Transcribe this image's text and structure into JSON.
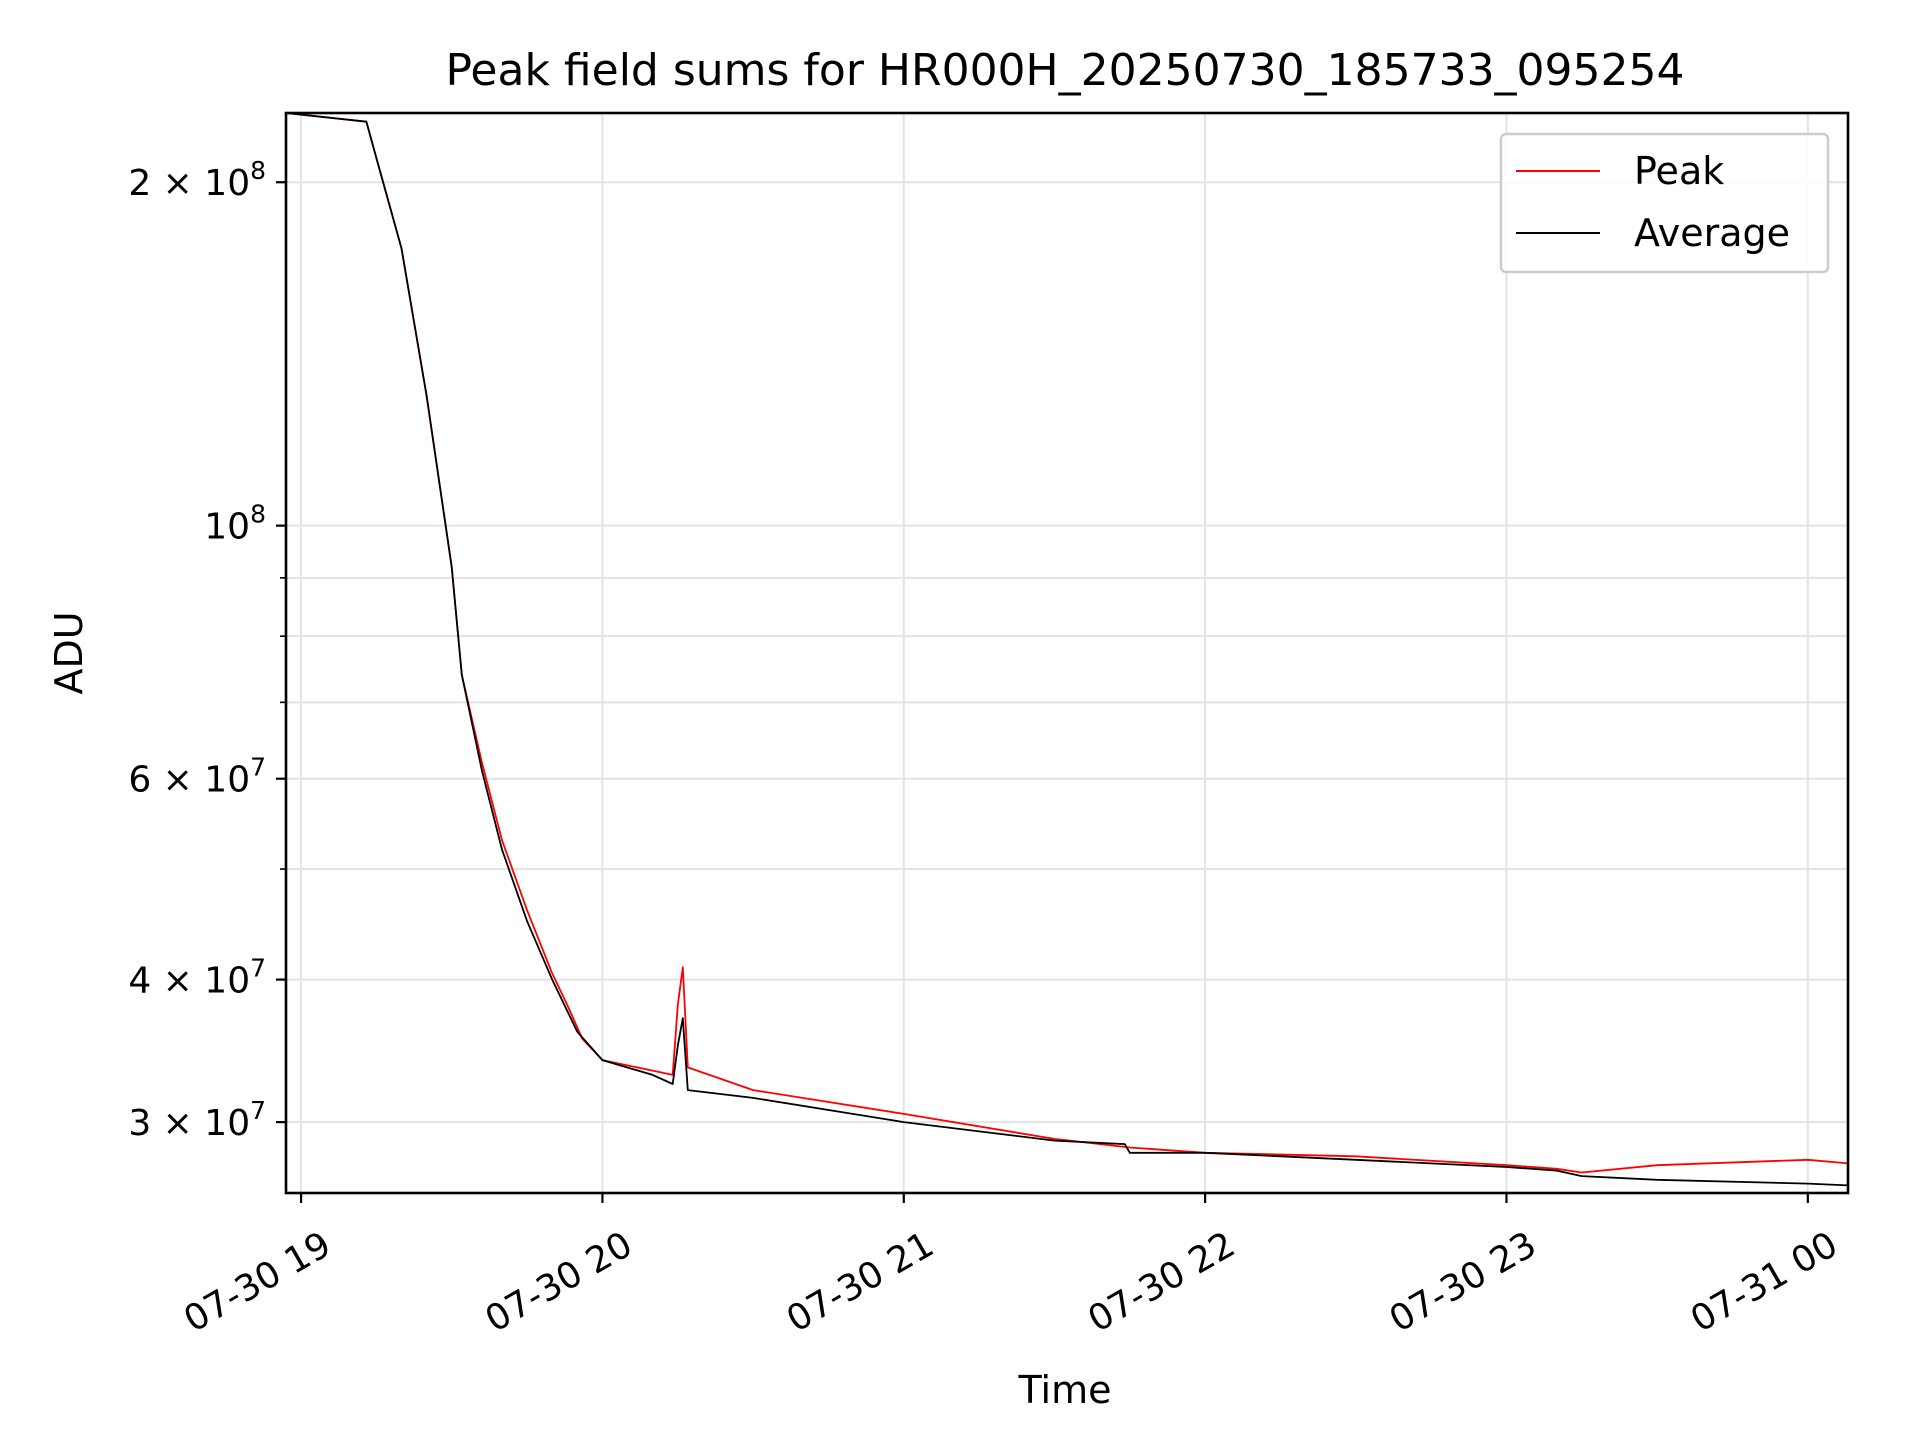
{
  "chart_data": {
    "type": "line",
    "title": "Peak field sums for HR000H_20250730_185733_095254",
    "xlabel": "Time",
    "ylabel": "ADU",
    "yscale": "log",
    "xlim": [
      "2025-07-30 18:57",
      "2025-07-31 00:08"
    ],
    "ylim": [
      26000000,
      230000000
    ],
    "grid": true,
    "legend_position": "upper right",
    "x_ticks": [
      {
        "value": "2025-07-30 19:00",
        "label": "07-30 19"
      },
      {
        "value": "2025-07-30 20:00",
        "label": "07-30 20"
      },
      {
        "value": "2025-07-30 21:00",
        "label": "07-30 21"
      },
      {
        "value": "2025-07-30 22:00",
        "label": "07-30 22"
      },
      {
        "value": "2025-07-30 23:00",
        "label": "07-30 23"
      },
      {
        "value": "2025-07-31 00:00",
        "label": "07-31 00"
      }
    ],
    "y_ticks": [
      {
        "value": 200000000,
        "mantissa": "2",
        "base": "10",
        "exponent": "8"
      },
      {
        "value": 100000000,
        "mantissa": "",
        "base": "10",
        "exponent": "8"
      },
      {
        "value": 60000000,
        "mantissa": "6",
        "base": "10",
        "exponent": "7"
      },
      {
        "value": 40000000,
        "mantissa": "4",
        "base": "10",
        "exponent": "7"
      },
      {
        "value": 30000000,
        "mantissa": "3",
        "base": "10",
        "exponent": "7"
      }
    ],
    "y_minor_ticks": [
      90000000,
      80000000,
      70000000,
      50000000
    ],
    "series": [
      {
        "name": "Peak",
        "color": "#ff0000",
        "x": [
          "2025-07-30 18:57",
          "2025-07-30 19:13",
          "2025-07-30 19:15",
          "2025-07-30 19:20",
          "2025-07-30 19:25",
          "2025-07-30 19:30",
          "2025-07-30 19:32",
          "2025-07-30 19:36",
          "2025-07-30 19:40",
          "2025-07-30 19:45",
          "2025-07-30 19:50",
          "2025-07-30 19:53",
          "2025-07-30 19:56",
          "2025-07-30 20:00",
          "2025-07-30 20:14",
          "2025-07-30 20:15",
          "2025-07-30 20:16",
          "2025-07-30 20:17",
          "2025-07-30 20:30",
          "2025-07-30 21:00",
          "2025-07-30 21:30",
          "2025-07-30 21:45",
          "2025-07-30 22:00",
          "2025-07-30 22:30",
          "2025-07-30 23:00",
          "2025-07-30 23:10",
          "2025-07-30 23:15",
          "2025-07-30 23:30",
          "2025-07-31 00:00",
          "2025-07-31 00:08"
        ],
        "y": [
          230000000,
          226000000,
          210000000,
          175000000,
          130000000,
          92000000,
          74000000,
          62000000,
          53000000,
          46000000,
          40500000,
          38000000,
          35500000,
          34000000,
          33000000,
          38000000,
          41000000,
          33500000,
          32000000,
          30500000,
          29000000,
          28500000,
          28200000,
          28000000,
          27500000,
          27300000,
          27100000,
          27500000,
          27800000,
          27600000
        ]
      },
      {
        "name": "Average",
        "color": "#000000",
        "x": [
          "2025-07-30 18:57",
          "2025-07-30 19:13",
          "2025-07-30 19:15",
          "2025-07-30 19:20",
          "2025-07-30 19:25",
          "2025-07-30 19:30",
          "2025-07-30 19:32",
          "2025-07-30 19:36",
          "2025-07-30 19:40",
          "2025-07-30 19:45",
          "2025-07-30 19:50",
          "2025-07-30 19:55",
          "2025-07-30 20:00",
          "2025-07-30 20:10",
          "2025-07-30 20:14",
          "2025-07-30 20:15",
          "2025-07-30 20:16",
          "2025-07-30 20:17",
          "2025-07-30 20:30",
          "2025-07-30 21:00",
          "2025-07-30 21:30",
          "2025-07-30 21:44",
          "2025-07-30 21:45",
          "2025-07-30 22:00",
          "2025-07-30 22:30",
          "2025-07-30 23:00",
          "2025-07-30 23:10",
          "2025-07-30 23:15",
          "2025-07-30 23:30",
          "2025-07-31 00:00",
          "2025-07-31 00:08"
        ],
        "y": [
          230000000,
          226000000,
          210000000,
          175000000,
          130000000,
          92000000,
          74000000,
          61000000,
          52000000,
          45000000,
          40000000,
          36000000,
          34000000,
          33000000,
          32400000,
          35000000,
          37000000,
          32000000,
          31500000,
          30000000,
          28900000,
          28700000,
          28200000,
          28200000,
          27800000,
          27400000,
          27200000,
          26900000,
          26700000,
          26500000,
          26400000
        ]
      }
    ]
  }
}
